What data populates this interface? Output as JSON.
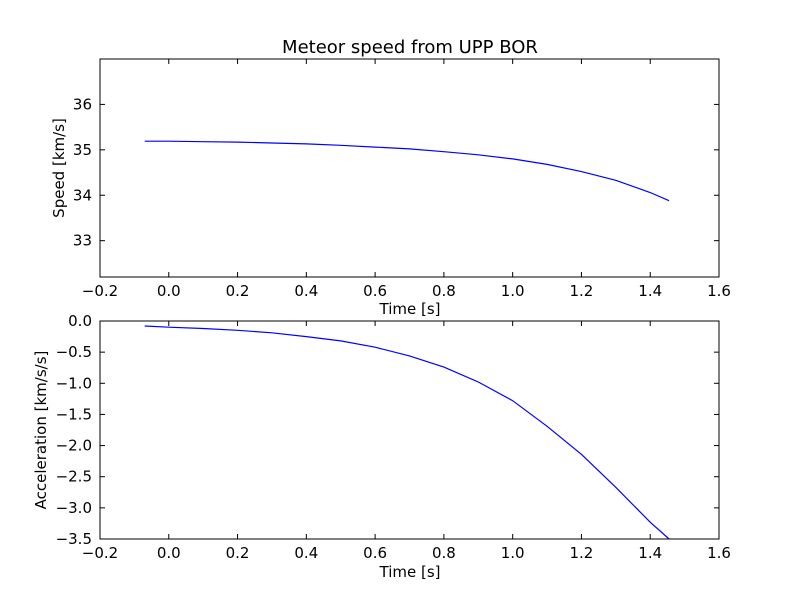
{
  "chart_data": [
    {
      "type": "line",
      "title": "Meteor speed from  UPP BOR",
      "xlabel": "Time [s]",
      "ylabel": "Speed [km/s]",
      "xlim": [
        -0.2,
        1.6
      ],
      "ylim": [
        32.2,
        37.0
      ],
      "xticks": [
        "−0.2",
        "0.0",
        "0.2",
        "0.4",
        "0.6",
        "0.8",
        "1.0",
        "1.2",
        "1.4",
        "1.6"
      ],
      "xtick_values": [
        -0.2,
        0.0,
        0.2,
        0.4,
        0.6,
        0.8,
        1.0,
        1.2,
        1.4,
        1.6
      ],
      "yticks": [
        "33",
        "34",
        "35",
        "36"
      ],
      "ytick_values": [
        33,
        34,
        35,
        36
      ],
      "grid": false,
      "series": [
        {
          "color": "#0000ff",
          "x": [
            -0.07,
            0.0,
            0.1,
            0.2,
            0.3,
            0.4,
            0.5,
            0.6,
            0.7,
            0.8,
            0.9,
            1.0,
            1.1,
            1.2,
            1.3,
            1.4,
            1.455
          ],
          "y": [
            35.19,
            35.19,
            35.18,
            35.17,
            35.15,
            35.13,
            35.1,
            35.06,
            35.02,
            34.96,
            34.89,
            34.8,
            34.68,
            34.52,
            34.33,
            34.06,
            33.88
          ]
        }
      ]
    },
    {
      "type": "line",
      "title": "",
      "xlabel": "Time [s]",
      "ylabel": "Acceleration [km/s/s]",
      "xlim": [
        -0.2,
        1.6
      ],
      "ylim": [
        -3.5,
        0.0
      ],
      "xticks": [
        "−0.2",
        "0.0",
        "0.2",
        "0.4",
        "0.6",
        "0.8",
        "1.0",
        "1.2",
        "1.4",
        "1.6"
      ],
      "xtick_values": [
        -0.2,
        0.0,
        0.2,
        0.4,
        0.6,
        0.8,
        1.0,
        1.2,
        1.4,
        1.6
      ],
      "yticks": [
        "−3.5",
        "−3.0",
        "−2.5",
        "−2.0",
        "−1.5",
        "−1.0",
        "−0.5",
        "0.0"
      ],
      "ytick_values": [
        -3.5,
        -3.0,
        -2.5,
        -2.0,
        -1.5,
        -1.0,
        -0.5,
        0.0
      ],
      "grid": false,
      "series": [
        {
          "color": "#0000ff",
          "x": [
            -0.07,
            0.0,
            0.1,
            0.2,
            0.3,
            0.4,
            0.5,
            0.6,
            0.7,
            0.8,
            0.9,
            1.0,
            1.1,
            1.2,
            1.3,
            1.4,
            1.455
          ],
          "y": [
            -0.08,
            -0.1,
            -0.12,
            -0.15,
            -0.19,
            -0.25,
            -0.32,
            -0.42,
            -0.56,
            -0.74,
            -0.98,
            -1.28,
            -1.69,
            -2.14,
            -2.67,
            -3.23,
            -3.5
          ]
        }
      ]
    }
  ]
}
